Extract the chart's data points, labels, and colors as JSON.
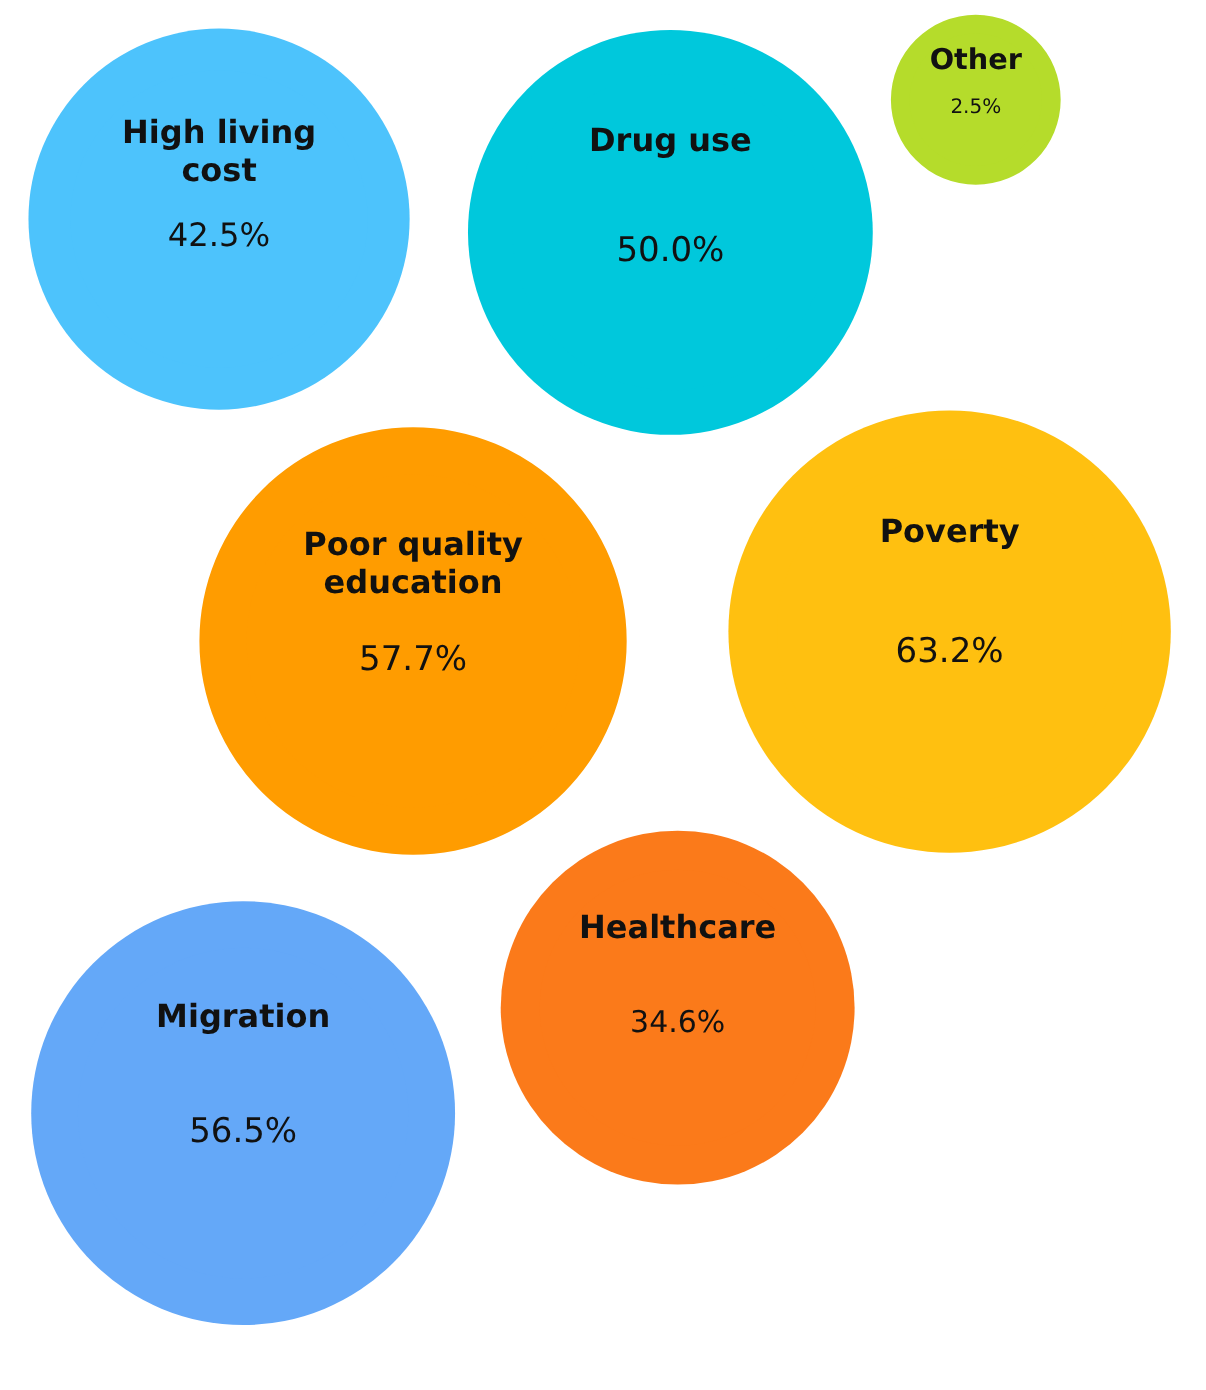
{
  "chart_data": {
    "type": "other",
    "categories": [
      "High living cost",
      "Drug use",
      "Other",
      "Poverty",
      "Poor quality education",
      "Healthcare",
      "Migration"
    ],
    "values": [
      42.5,
      50.0,
      2.5,
      63.2,
      57.7,
      34.6,
      56.5
    ],
    "value_labels": [
      "42.5%",
      "50.0%",
      "2.5%",
      "63.2%",
      "57.7%",
      "34.6%",
      "56.5%"
    ],
    "colors": [
      "#4dc3fc",
      "#00c8dc",
      "#b5dc2b",
      "#ffc010",
      "#ff9c00",
      "#fb7a1a",
      "#64a8f8"
    ]
  }
}
